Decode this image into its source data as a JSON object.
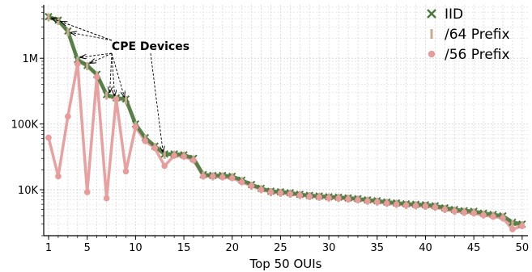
{
  "chart_data": {
    "type": "line",
    "xlabel": "Top 50 OUIs",
    "ylabel": "",
    "yscale": "log",
    "xlim": [
      0.5,
      50.6
    ],
    "ylim": [
      2000,
      6500000
    ],
    "xticks": [
      1,
      5,
      10,
      15,
      20,
      25,
      30,
      35,
      40,
      45,
      50
    ],
    "yticks": [
      10000,
      100000,
      1000000
    ],
    "ytick_labels": [
      "10K",
      "100K",
      "1M"
    ],
    "grid": true,
    "legend_position": "top-right",
    "annotation": {
      "text": "CPE Devices",
      "targets": [
        1,
        2,
        3,
        4,
        5,
        7,
        8,
        9,
        13
      ]
    },
    "x": [
      1,
      2,
      3,
      4,
      5,
      6,
      7,
      8,
      9,
      10,
      11,
      12,
      13,
      14,
      15,
      16,
      17,
      18,
      19,
      20,
      21,
      22,
      23,
      24,
      25,
      26,
      27,
      28,
      29,
      30,
      31,
      32,
      33,
      34,
      35,
      36,
      37,
      38,
      39,
      40,
      41,
      42,
      43,
      44,
      45,
      46,
      47,
      48,
      49,
      50
    ],
    "series": [
      {
        "name": "IID",
        "marker": "x",
        "color": "#4a7a3f",
        "values": [
          4300000,
          3800000,
          2600000,
          950000,
          780000,
          570000,
          280000,
          250000,
          240000,
          100000,
          62000,
          46000,
          35000,
          35000,
          34000,
          30000,
          17000,
          16500,
          16500,
          16000,
          14000,
          12000,
          10500,
          9500,
          9300,
          9000,
          8500,
          8200,
          8000,
          7800,
          7700,
          7500,
          7300,
          7000,
          6800,
          6500,
          6300,
          6100,
          6000,
          5900,
          5700,
          5300,
          5000,
          4800,
          4700,
          4400,
          4200,
          4000,
          3200,
          3000
        ]
      },
      {
        "name": "/64 Prefix",
        "marker": "|",
        "color": "#c8ab8e",
        "values": [
          4200000,
          3700000,
          2500000,
          920000,
          760000,
          550000,
          270000,
          240000,
          230000,
          95000,
          60000,
          45000,
          34000,
          34000,
          33000,
          29000,
          16500,
          16000,
          16000,
          15500,
          13500,
          11500,
          10200,
          9200,
          9000,
          8700,
          8300,
          8000,
          7800,
          7600,
          7500,
          7300,
          7100,
          6800,
          6600,
          6300,
          6100,
          5900,
          5800,
          5700,
          5500,
          5100,
          4800,
          4600,
          4500,
          4200,
          4000,
          3800,
          3000,
          2900
        ]
      },
      {
        "name": "/56 Prefix",
        "marker": "o",
        "color": "#e89b9b",
        "values": [
          62000,
          16000,
          130000,
          820000,
          9200,
          520000,
          7400,
          240000,
          19000,
          90000,
          55000,
          43000,
          23000,
          33000,
          32000,
          28000,
          16000,
          16000,
          15500,
          15000,
          13000,
          11500,
          10000,
          9200,
          8900,
          8600,
          8200,
          7900,
          7700,
          7500,
          7400,
          7200,
          7000,
          6700,
          6500,
          6200,
          6000,
          5800,
          5700,
          5600,
          5400,
          5000,
          4700,
          4500,
          4400,
          4100,
          3900,
          3700,
          2500,
          2800
        ]
      }
    ]
  }
}
